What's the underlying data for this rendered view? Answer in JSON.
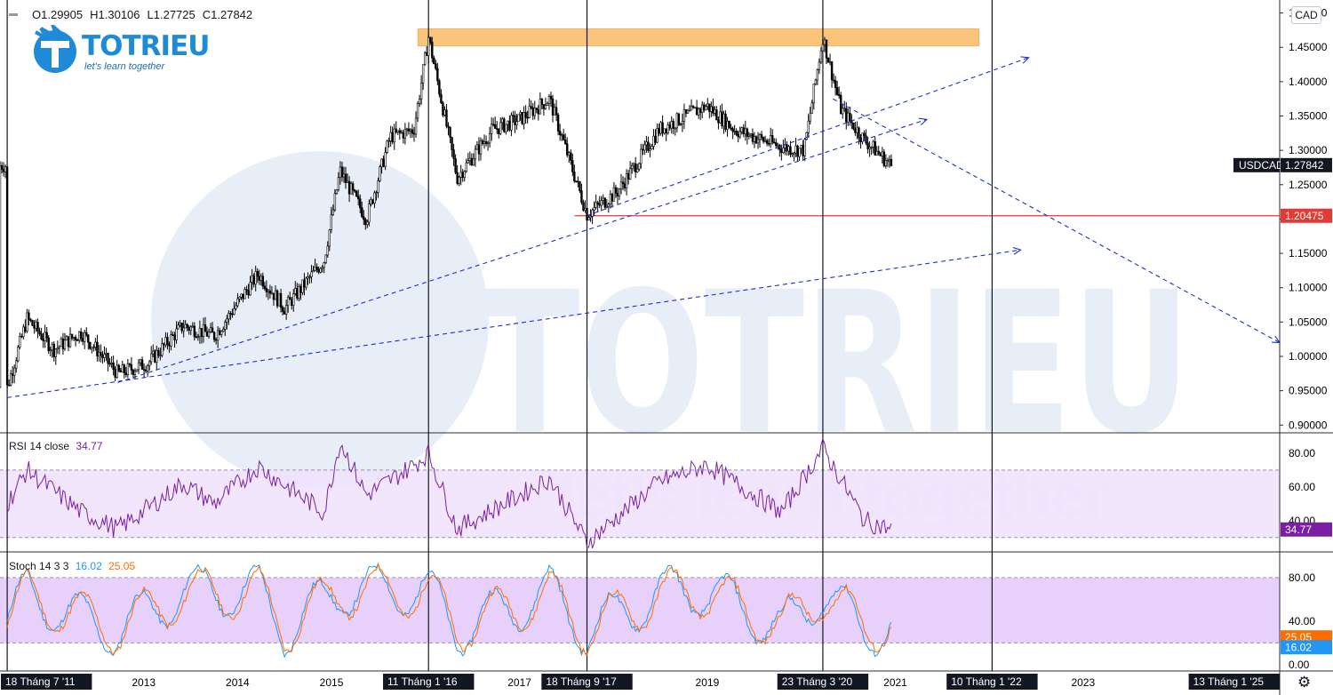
{
  "ohlc": {
    "o_label": "O",
    "o": "1.29905",
    "h_label": "H",
    "h": "1.30106",
    "l_label": "L",
    "l": "1.27725",
    "c_label": "C",
    "c": "1.27842"
  },
  "logo": {
    "word": "TOTRIEU",
    "slogan": "let's learn together",
    "watermark": "TOTRIEU",
    "watermark_slogan": "let's learn together"
  },
  "currency_button": "CAD",
  "settings_icon": "gear-icon",
  "colors": {
    "candle": "#000000",
    "trend": "#1a2fd1",
    "support": "#e53935",
    "resistance_box": "#f9b24f",
    "rsi": "#7b1fa2",
    "rsi_band": "#efe2fb",
    "stoch_k": "#2196f3",
    "stoch_d": "#ff6d00",
    "stoch_band": "#e3c9fa",
    "watermark": "#e8eef8"
  },
  "chart_data": [
    {
      "type": "line",
      "symbol": "USDCAD",
      "last_price": "1.27842",
      "y_ticks": [
        "1.50000",
        "1.45000",
        "1.40000",
        "1.35000",
        "1.30000",
        "1.25000",
        "1.20000",
        "1.15000",
        "1.10000",
        "1.05000",
        "1.00000",
        "0.95000",
        "0.90000"
      ],
      "ylim": [
        0.89,
        1.515
      ],
      "x_labels": [
        {
          "date": "2013",
          "highlight": false
        },
        {
          "date": "2014",
          "highlight": false
        },
        {
          "date": "2015",
          "highlight": false
        },
        {
          "date": "2017",
          "highlight": false
        },
        {
          "date": "2019",
          "highlight": false
        },
        {
          "date": "2021",
          "highlight": false
        },
        {
          "date": "2023",
          "highlight": false
        },
        {
          "date": "18 Tháng 7 '11",
          "highlight": true
        },
        {
          "date": "11 Tháng 1 '16",
          "highlight": true
        },
        {
          "date": "18 Tháng 9 '17",
          "highlight": true
        },
        {
          "date": "23 Tháng 3 '20",
          "highlight": true
        },
        {
          "date": "10 Tháng 1 '22",
          "highlight": true
        },
        {
          "date": "13 Tháng 1 '25",
          "highlight": true
        }
      ],
      "x_range": [
        "2011-06-20",
        "2025-02-01"
      ],
      "price_series": [
        {
          "date": "2011-07-18",
          "value": 0.955
        },
        {
          "date": "2011-10-03",
          "value": 1.055
        },
        {
          "date": "2012-01-15",
          "value": 1.01
        },
        {
          "date": "2012-05-01",
          "value": 1.035
        },
        {
          "date": "2012-09-20",
          "value": 0.975
        },
        {
          "date": "2013-01-15",
          "value": 0.99
        },
        {
          "date": "2013-06-01",
          "value": 1.045
        },
        {
          "date": "2013-10-01",
          "value": 1.03
        },
        {
          "date": "2014-03-20",
          "value": 1.12
        },
        {
          "date": "2014-07-01",
          "value": 1.07
        },
        {
          "date": "2014-12-01",
          "value": 1.14
        },
        {
          "date": "2015-02-01",
          "value": 1.27
        },
        {
          "date": "2015-05-15",
          "value": 1.2
        },
        {
          "date": "2015-08-15",
          "value": 1.32
        },
        {
          "date": "2015-11-15",
          "value": 1.33
        },
        {
          "date": "2016-01-11",
          "value": 1.465
        },
        {
          "date": "2016-05-01",
          "value": 1.26
        },
        {
          "date": "2016-09-15",
          "value": 1.33
        },
        {
          "date": "2016-12-30",
          "value": 1.345
        },
        {
          "date": "2017-04-25",
          "value": 1.375
        },
        {
          "date": "2017-09-18",
          "value": 1.207
        },
        {
          "date": "2018-01-15",
          "value": 1.24
        },
        {
          "date": "2018-06-25",
          "value": 1.33
        },
        {
          "date": "2018-12-28",
          "value": 1.365
        },
        {
          "date": "2019-04-15",
          "value": 1.33
        },
        {
          "date": "2019-10-15",
          "value": 1.305
        },
        {
          "date": "2020-01-10",
          "value": 1.3
        },
        {
          "date": "2020-03-23",
          "value": 1.465
        },
        {
          "date": "2020-06-01",
          "value": 1.36
        },
        {
          "date": "2020-09-01",
          "value": 1.315
        },
        {
          "date": "2020-12-14",
          "value": 1.278
        }
      ],
      "support_level": {
        "value": 1.20475,
        "label": "1.20475"
      },
      "resistance_zone": {
        "from_date": "2015-12-01",
        "to_date": "2021-11-20",
        "low": 1.452,
        "high": 1.477
      },
      "trendlines": [
        {
          "start": {
            "date": "2011-07-18",
            "value": 0.94
          },
          "end": {
            "date": "2022-05-01",
            "value": 1.155
          }
        },
        {
          "start": {
            "date": "2012-09-20",
            "value": 0.962
          },
          "end": {
            "date": "2021-05-01",
            "value": 1.345
          }
        },
        {
          "start": {
            "date": "2017-09-18",
            "value": 1.205
          },
          "end": {
            "date": "2022-06-01",
            "value": 1.435
          }
        },
        {
          "start": {
            "date": "2020-05-01",
            "value": 1.375
          },
          "end": {
            "date": "2025-02-01",
            "value": 1.02
          }
        }
      ],
      "vertical_lines": [
        "2011-07-18",
        "2016-01-11",
        "2017-09-18",
        "2020-03-23",
        "2022-01-10"
      ]
    },
    {
      "type": "line",
      "title": "RSI 14 close",
      "value_label": "34.77",
      "y_ticks": [
        "80.00",
        "60.00",
        "40.00"
      ],
      "band": [
        30,
        70
      ],
      "ylim": [
        22,
        91
      ],
      "series": [
        {
          "points": [
            {
              "date": "2011-07-18",
              "value": 50
            },
            {
              "date": "2011-10-03",
              "value": 70
            },
            {
              "date": "2012-05-01",
              "value": 45
            },
            {
              "date": "2012-09-20",
              "value": 35
            },
            {
              "date": "2013-06-01",
              "value": 62
            },
            {
              "date": "2013-10-01",
              "value": 50
            },
            {
              "date": "2014-03-20",
              "value": 72
            },
            {
              "date": "2014-12-01",
              "value": 45
            },
            {
              "date": "2015-02-01",
              "value": 87
            },
            {
              "date": "2015-05-15",
              "value": 55
            },
            {
              "date": "2015-11-15",
              "value": 73
            },
            {
              "date": "2016-01-11",
              "value": 80
            },
            {
              "date": "2016-05-01",
              "value": 35
            },
            {
              "date": "2016-12-30",
              "value": 55
            },
            {
              "date": "2017-04-25",
              "value": 65
            },
            {
              "date": "2017-09-18",
              "value": 27
            },
            {
              "date": "2018-06-25",
              "value": 63
            },
            {
              "date": "2018-12-28",
              "value": 73
            },
            {
              "date": "2019-10-15",
              "value": 45
            },
            {
              "date": "2020-03-23",
              "value": 83
            },
            {
              "date": "2020-09-01",
              "value": 40
            },
            {
              "date": "2020-12-14",
              "value": 34.77
            }
          ]
        }
      ]
    },
    {
      "type": "line",
      "title": "Stoch 14 3 3",
      "k_label": "16.02",
      "d_label": "25.05",
      "y_ticks": [
        "80.00",
        "40.00",
        "0.00"
      ],
      "band": [
        20,
        80
      ],
      "ylim": [
        -5,
        102
      ],
      "series": [
        {
          "points": [
            {
              "date": "2011-07-18",
              "value": 25
            },
            {
              "date": "2011-10-03",
              "value": 85
            },
            {
              "date": "2012-05-01",
              "value": 30
            },
            {
              "date": "2012-09-20",
              "value": 8
            },
            {
              "date": "2013-06-01",
              "value": 88
            },
            {
              "date": "2014-03-20",
              "value": 90
            },
            {
              "date": "2014-07-01",
              "value": 8
            },
            {
              "date": "2015-02-01",
              "value": 92
            },
            {
              "date": "2016-01-11",
              "value": 90
            },
            {
              "date": "2016-05-01",
              "value": 10
            },
            {
              "date": "2017-04-25",
              "value": 88
            },
            {
              "date": "2017-09-18",
              "value": 5
            },
            {
              "date": "2018-06-25",
              "value": 85
            },
            {
              "date": "2018-12-28",
              "value": 92
            },
            {
              "date": "2019-10-15",
              "value": 10
            },
            {
              "date": "2020-03-23",
              "value": 88
            },
            {
              "date": "2020-09-01",
              "value": 10
            },
            {
              "date": "2020-12-14",
              "value": 16.02
            }
          ]
        },
        {
          "points": [
            {
              "date": "2011-07-18",
              "value": 30
            },
            {
              "date": "2011-10-03",
              "value": 80
            },
            {
              "date": "2012-05-01",
              "value": 35
            },
            {
              "date": "2012-09-20",
              "value": 12
            },
            {
              "date": "2013-06-01",
              "value": 82
            },
            {
              "date": "2014-03-20",
              "value": 86
            },
            {
              "date": "2014-07-01",
              "value": 12
            },
            {
              "date": "2015-02-01",
              "value": 88
            },
            {
              "date": "2016-01-11",
              "value": 86
            },
            {
              "date": "2016-05-01",
              "value": 15
            },
            {
              "date": "2017-04-25",
              "value": 82
            },
            {
              "date": "2017-09-18",
              "value": 10
            },
            {
              "date": "2018-06-25",
              "value": 80
            },
            {
              "date": "2018-12-28",
              "value": 87
            },
            {
              "date": "2019-10-15",
              "value": 15
            },
            {
              "date": "2020-03-23",
              "value": 84
            },
            {
              "date": "2020-09-01",
              "value": 15
            },
            {
              "date": "2020-12-14",
              "value": 25.05
            }
          ]
        }
      ]
    }
  ]
}
